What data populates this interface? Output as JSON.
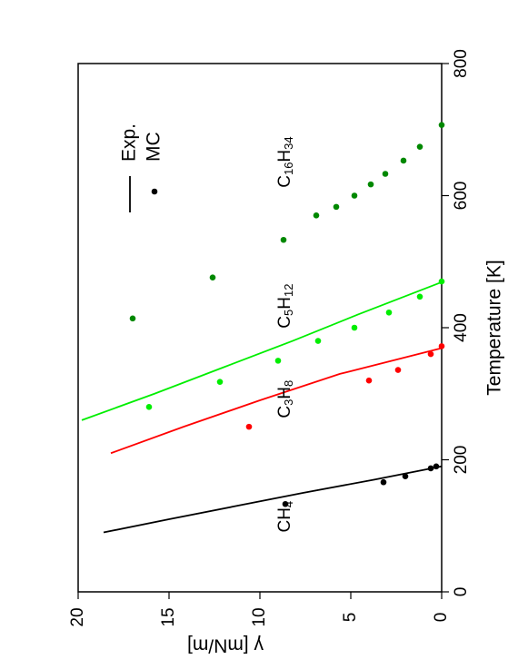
{
  "chart_data": {
    "type": "scatter",
    "orientation": "rotated-90-clockwise",
    "xlabel": "Temperature [K]",
    "ylabel": "γ [mN/m]",
    "xlim": [
      0,
      800
    ],
    "ylim": [
      0,
      20
    ],
    "xticks": [
      "0",
      "200",
      "400",
      "600",
      "800"
    ],
    "yticks": [
      "0",
      "5",
      "10",
      "15",
      "20"
    ],
    "grid": false,
    "legend": {
      "position": "top-right",
      "entries": [
        "Exp.",
        "MC"
      ]
    },
    "series_labels": [
      {
        "base": "CH",
        "sub": "4",
        "base2": "",
        "sub2": ""
      },
      {
        "base": "C",
        "sub": "3",
        "base2": "H",
        "sub2": "8"
      },
      {
        "base": "C",
        "sub": "5",
        "base2": "H",
        "sub2": "12"
      },
      {
        "base": "C",
        "sub": "16",
        "base2": "H",
        "sub2": "34"
      }
    ],
    "series": [
      {
        "color": "#000000",
        "exp_line": {
          "x": [
            90,
            110,
            130,
            150,
            170,
            190
          ],
          "y": [
            18.6,
            15.0,
            11.3,
            7.6,
            3.7,
            0.0
          ]
        },
        "mc_points": {
          "x": [
            133,
            166,
            175,
            187,
            190
          ],
          "y": [
            8.6,
            3.2,
            2.0,
            0.6,
            0.3
          ]
        }
      },
      {
        "color": "#ff0000",
        "exp_line": {
          "x": [
            210,
            250,
            290,
            330,
            369
          ],
          "y": [
            18.2,
            14.2,
            10.0,
            5.6,
            0.0
          ]
        },
        "mc_points": {
          "x": [
            250,
            320,
            336,
            360,
            372
          ],
          "y": [
            10.6,
            4.0,
            2.4,
            0.6,
            0.0
          ]
        }
      },
      {
        "color": "#00ee00",
        "exp_line": {
          "x": [
            260,
            300,
            340,
            380,
            420,
            469
          ],
          "y": [
            19.8,
            15.8,
            12.0,
            8.2,
            4.6,
            0.0
          ]
        },
        "mc_points": {
          "x": [
            280,
            318,
            350,
            380,
            400,
            423,
            447,
            470
          ],
          "y": [
            16.1,
            12.2,
            9.0,
            6.8,
            4.8,
            2.9,
            1.2,
            0.0
          ]
        }
      },
      {
        "color": "#008800",
        "mc_points": {
          "x": [
            414,
            476,
            533,
            570,
            583,
            600,
            617,
            633,
            653,
            674,
            707
          ],
          "y": [
            17.0,
            12.6,
            8.7,
            6.9,
            5.8,
            4.8,
            3.9,
            3.1,
            2.1,
            1.2,
            0.0
          ]
        }
      }
    ]
  }
}
